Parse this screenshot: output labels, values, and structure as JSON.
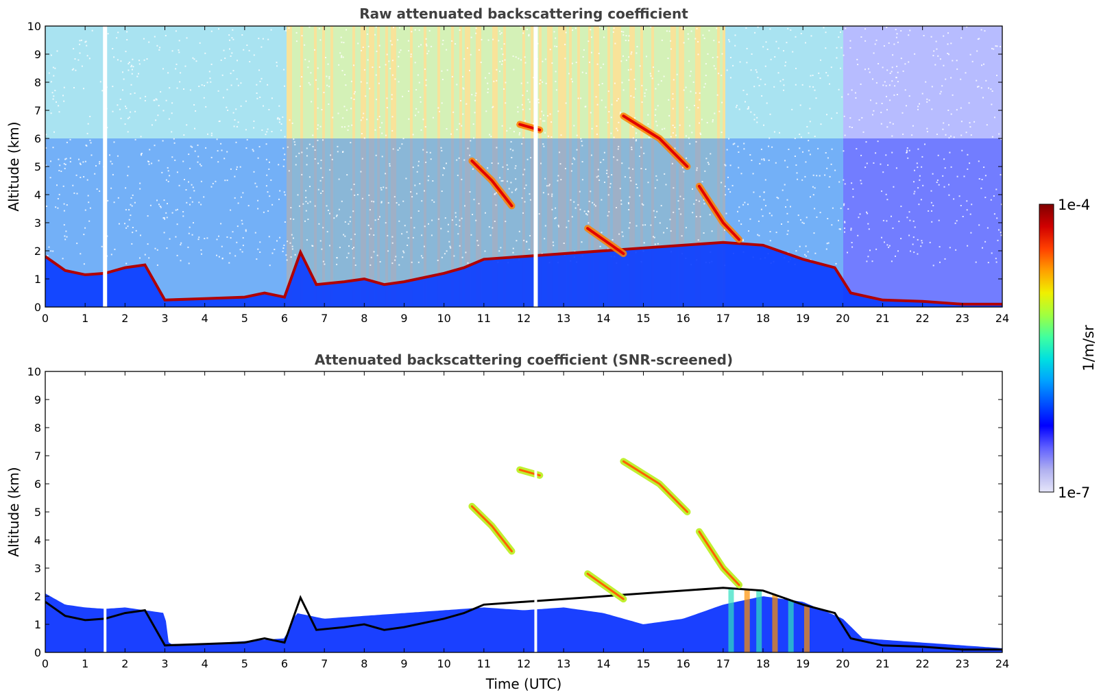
{
  "chart_data": [
    {
      "type": "heatmap",
      "title": "Raw attenuated backscattering coefficient",
      "ylabel": "Altitude (km)",
      "xlabel": "",
      "xlim": [
        0,
        24
      ],
      "ylim": [
        0,
        10
      ],
      "x_ticks": [
        0,
        1,
        2,
        3,
        4,
        5,
        6,
        7,
        8,
        9,
        10,
        11,
        12,
        13,
        14,
        15,
        16,
        17,
        18,
        19,
        20,
        21,
        22,
        23,
        24
      ],
      "y_ticks": [
        0,
        1,
        2,
        3,
        4,
        5,
        6,
        7,
        8,
        9,
        10
      ],
      "features": {
        "cloud_base_km": [
          [
            0.0,
            1.8
          ],
          [
            0.5,
            1.3
          ],
          [
            1.0,
            1.15
          ],
          [
            1.5,
            1.2
          ],
          [
            2.0,
            1.4
          ],
          [
            2.5,
            1.5
          ],
          [
            3.0,
            0.25
          ],
          [
            4.0,
            0.3
          ],
          [
            5.0,
            0.35
          ],
          [
            5.5,
            0.5
          ],
          [
            6.0,
            0.35
          ],
          [
            6.4,
            1.95
          ],
          [
            6.8,
            0.8
          ],
          [
            7.5,
            0.9
          ],
          [
            8.0,
            1.0
          ],
          [
            8.5,
            0.8
          ],
          [
            9.0,
            0.9
          ],
          [
            10.0,
            1.2
          ],
          [
            10.5,
            1.4
          ],
          [
            11.0,
            1.7
          ],
          [
            17.0,
            2.3
          ],
          [
            18.0,
            2.2
          ],
          [
            19.0,
            1.7
          ],
          [
            19.8,
            1.4
          ],
          [
            20.2,
            0.5
          ],
          [
            21.0,
            0.25
          ],
          [
            22.0,
            0.2
          ],
          [
            23.0,
            0.1
          ],
          [
            24.0,
            0.1
          ]
        ],
        "high_cloud_segments_km": [
          [
            [
              10.7,
              5.2
            ],
            [
              11.2,
              4.5
            ],
            [
              11.7,
              3.6
            ]
          ],
          [
            [
              11.9,
              6.5
            ],
            [
              12.4,
              6.3
            ]
          ],
          [
            [
              14.5,
              6.8
            ],
            [
              15.4,
              6.0
            ],
            [
              16.1,
              5.0
            ]
          ],
          [
            [
              16.4,
              4.3
            ],
            [
              17.0,
              3.0
            ],
            [
              17.4,
              2.4
            ]
          ],
          [
            [
              13.6,
              2.8
            ],
            [
              14.1,
              2.3
            ],
            [
              14.5,
              1.9
            ]
          ]
        ],
        "data_gaps_hours": [
          1.5,
          12.3
        ],
        "noise_clear_start_hours": 20.0
      }
    },
    {
      "type": "heatmap",
      "title": "Attenuated backscattering coefficient (SNR-screened)",
      "ylabel": "Altitude (km)",
      "xlabel": "Time (UTC)",
      "xlim": [
        0,
        24
      ],
      "ylim": [
        0,
        10
      ],
      "x_ticks": [
        0,
        1,
        2,
        3,
        4,
        5,
        6,
        7,
        8,
        9,
        10,
        11,
        12,
        13,
        14,
        15,
        16,
        17,
        18,
        19,
        20,
        21,
        22,
        23,
        24
      ],
      "y_ticks": [
        0,
        1,
        2,
        3,
        4,
        5,
        6,
        7,
        8,
        9,
        10
      ],
      "aerosol_top_km": [
        [
          0.0,
          2.1
        ],
        [
          0.5,
          1.7
        ],
        [
          1.0,
          1.6
        ],
        [
          1.5,
          1.55
        ],
        [
          2.0,
          1.6
        ],
        [
          2.5,
          1.5
        ],
        [
          3.0,
          1.4
        ],
        [
          3.1,
          0.3
        ],
        [
          4.0,
          0.3
        ],
        [
          5.0,
          0.4
        ],
        [
          6.0,
          0.5
        ],
        [
          6.3,
          1.4
        ],
        [
          7.0,
          1.2
        ],
        [
          8.0,
          1.3
        ],
        [
          9.0,
          1.4
        ],
        [
          10.0,
          1.5
        ],
        [
          11.0,
          1.6
        ],
        [
          12.0,
          1.5
        ],
        [
          13.0,
          1.6
        ],
        [
          14.0,
          1.4
        ],
        [
          15.0,
          1.0
        ],
        [
          16.0,
          1.2
        ],
        [
          17.0,
          1.7
        ],
        [
          18.0,
          2.0
        ],
        [
          19.0,
          1.8
        ],
        [
          20.0,
          1.2
        ],
        [
          20.5,
          0.5
        ],
        [
          24.0,
          0.15
        ]
      ]
    }
  ],
  "colorbar": {
    "label": "1/m/sr",
    "max_label": "1e-4",
    "min_label": "1e-7",
    "colors": [
      "#e6e6fa",
      "#b0b0f0",
      "#6060ff",
      "#0000ff",
      "#0050ff",
      "#00a0ff",
      "#00e0e0",
      "#40ffa0",
      "#a0ff40",
      "#f0f000",
      "#ffa000",
      "#ff4000",
      "#d00000",
      "#800000"
    ]
  }
}
